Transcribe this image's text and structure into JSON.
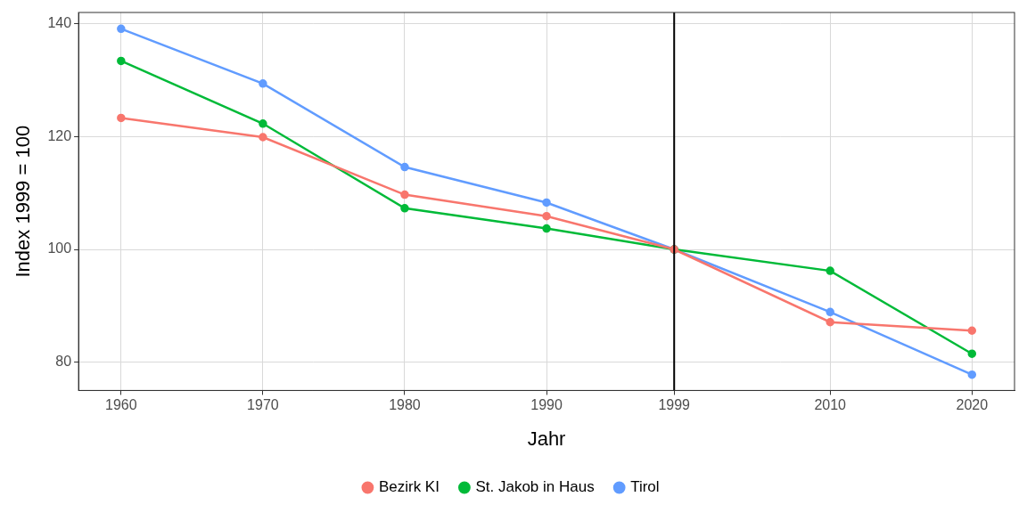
{
  "chart_data": {
    "type": "line",
    "x_label": "Jahr",
    "y_label": "Index 1999 = 100",
    "x": [
      1960,
      1970,
      1980,
      1990,
      1999,
      2010,
      2020
    ],
    "series": [
      {
        "name": "Bezirk KI",
        "color": "#F8766D",
        "values": [
          123.3,
          119.9,
          109.7,
          105.9,
          100,
          87.1,
          85.6
        ]
      },
      {
        "name": "St. Jakob in Haus",
        "color": "#00BA38",
        "values": [
          133.4,
          122.3,
          107.3,
          103.7,
          100,
          96.2,
          81.5
        ]
      },
      {
        "name": "Tirol",
        "color": "#619CFF",
        "values": [
          139.1,
          129.4,
          114.6,
          108.3,
          100,
          88.9,
          77.8
        ]
      }
    ],
    "xlim": [
      1957,
      2023
    ],
    "xticks": [
      1960,
      1970,
      1980,
      1990,
      1999,
      2010,
      2020
    ],
    "ylim": [
      75,
      142
    ],
    "yticks": [
      80,
      100,
      120,
      140
    ],
    "annotations": [
      {
        "type": "vline",
        "x": 1999
      }
    ],
    "grid": true,
    "legend": "bottom",
    "marker": "circle"
  }
}
